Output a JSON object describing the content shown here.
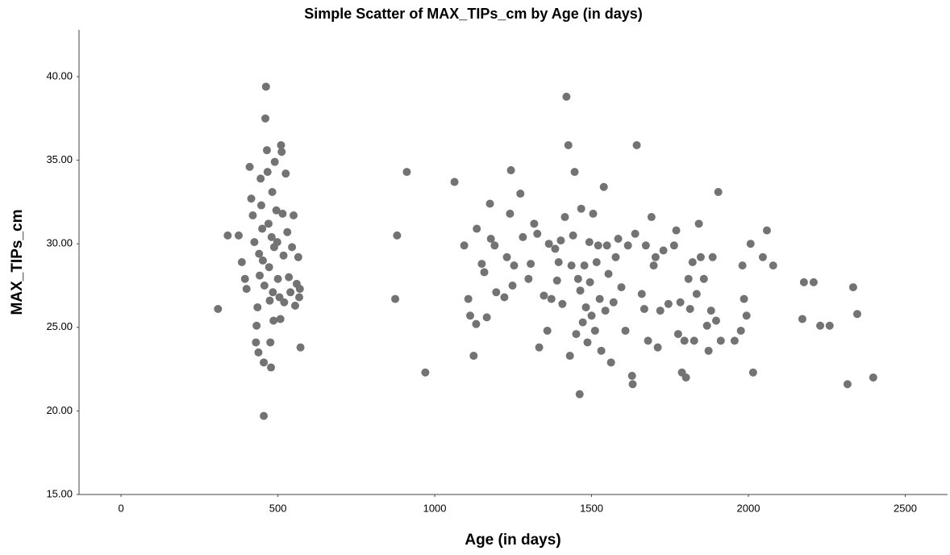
{
  "chart_data": {
    "type": "scatter",
    "title": "Simple Scatter of MAX_TIPs_cm by Age (in days)",
    "x_label": "Age (in days)",
    "y_label": "MAX_TIPs_cm",
    "color": "#737373",
    "grid": false,
    "xlim": [
      -134,
      2635
    ],
    "ylim": [
      15,
      42.8
    ],
    "xticks": [
      0,
      500,
      1000,
      1500,
      2000,
      2500
    ],
    "yticks": [
      {
        "value": 15,
        "label": "15.00"
      },
      {
        "value": 20,
        "label": "20.00"
      },
      {
        "value": 25,
        "label": "25.00"
      },
      {
        "value": 30,
        "label": "30.00"
      },
      {
        "value": 35,
        "label": "35.00"
      },
      {
        "value": 40,
        "label": "40.00"
      }
    ],
    "x": [
      309,
      340,
      375,
      385,
      395,
      400,
      410,
      415,
      420,
      425,
      430,
      432,
      435,
      438,
      440,
      442,
      445,
      447,
      450,
      452,
      455,
      455,
      457,
      460,
      462,
      465,
      467,
      470,
      472,
      474,
      476,
      478,
      480,
      482,
      484,
      486,
      488,
      490,
      495,
      498,
      500,
      505,
      508,
      510,
      512,
      515,
      518,
      520,
      525,
      530,
      535,
      540,
      545,
      550,
      555,
      560,
      565,
      568,
      570,
      572,
      880,
      874,
      911,
      970,
      1063,
      1094,
      1107,
      1113,
      1124,
      1132,
      1134,
      1150,
      1158,
      1166,
      1176,
      1179,
      1191,
      1196,
      1222,
      1230,
      1243,
      1240,
      1253,
      1248,
      1273,
      1281,
      1299,
      1306,
      1317,
      1327,
      1333,
      1348,
      1359,
      1364,
      1372,
      1384,
      1390,
      1395,
      1402,
      1407,
      1415,
      1420,
      1426,
      1431,
      1436,
      1441,
      1446,
      1451,
      1457,
      1462,
      1464,
      1467,
      1472,
      1477,
      1482,
      1487,
      1493,
      1495,
      1500,
      1505,
      1511,
      1516,
      1521,
      1526,
      1531,
      1539,
      1544,
      1549,
      1554,
      1562,
      1570,
      1577,
      1585,
      1595,
      1608,
      1616,
      1629,
      1631,
      1639,
      1644,
      1660,
      1668,
      1673,
      1680,
      1691,
      1698,
      1704,
      1711,
      1719,
      1729,
      1745,
      1763,
      1770,
      1776,
      1783,
      1788,
      1796,
      1801,
      1809,
      1814,
      1822,
      1827,
      1835,
      1842,
      1848,
      1858,
      1868,
      1873,
      1881,
      1886,
      1897,
      1904,
      1912,
      1956,
      1976,
      1981,
      1986,
      1994,
      2007,
      2015,
      2046,
      2059,
      2079,
      2172,
      2177,
      2208,
      2229,
      2259,
      2316,
      2334,
      2347,
      2398
    ],
    "values": [
      26.1,
      30.5,
      30.5,
      28.9,
      27.9,
      27.3,
      34.6,
      32.7,
      31.7,
      30.1,
      24.1,
      25.1,
      26.2,
      23.5,
      29.4,
      28.1,
      33.9,
      32.3,
      30.9,
      29.0,
      22.9,
      19.7,
      27.5,
      37.5,
      39.4,
      35.6,
      34.3,
      31.2,
      28.6,
      26.6,
      24.1,
      22.6,
      30.4,
      33.1,
      27.1,
      25.4,
      29.8,
      34.9,
      32.0,
      30.1,
      27.9,
      26.8,
      25.5,
      35.9,
      35.5,
      31.8,
      29.3,
      26.5,
      34.2,
      30.7,
      28.0,
      27.1,
      29.8,
      31.7,
      26.3,
      27.6,
      29.2,
      26.8,
      27.3,
      23.8,
      30.5,
      26.7,
      34.3,
      22.3,
      33.7,
      29.9,
      26.7,
      25.7,
      23.3,
      25.2,
      30.9,
      28.8,
      28.3,
      25.6,
      32.4,
      30.3,
      29.9,
      27.1,
      26.8,
      29.2,
      34.4,
      31.8,
      28.7,
      27.5,
      33.0,
      30.4,
      27.9,
      28.8,
      31.2,
      30.6,
      23.8,
      26.9,
      24.8,
      30.0,
      26.7,
      29.7,
      27.8,
      28.9,
      30.2,
      26.4,
      31.6,
      38.8,
      35.9,
      23.3,
      28.7,
      30.5,
      34.3,
      24.6,
      27.9,
      21.0,
      27.2,
      32.1,
      25.3,
      28.7,
      26.2,
      24.1,
      30.1,
      27.7,
      25.7,
      31.8,
      24.8,
      28.9,
      29.9,
      26.7,
      23.6,
      33.4,
      26.0,
      29.9,
      28.2,
      22.9,
      26.5,
      29.2,
      30.3,
      27.4,
      24.8,
      29.9,
      22.1,
      21.6,
      30.6,
      35.9,
      27.0,
      26.1,
      29.9,
      24.2,
      31.6,
      28.7,
      29.2,
      23.8,
      26.0,
      29.6,
      26.4,
      29.9,
      30.8,
      24.6,
      26.5,
      22.3,
      24.2,
      22.0,
      27.9,
      26.1,
      28.9,
      24.2,
      27.0,
      31.2,
      29.2,
      27.9,
      25.1,
      23.6,
      26.0,
      29.2,
      25.4,
      33.1,
      24.2,
      24.2,
      24.8,
      28.7,
      26.7,
      25.7,
      30.0,
      22.3,
      29.2,
      30.8,
      28.7,
      25.5,
      27.7,
      27.7,
      25.1,
      25.1,
      21.6,
      27.4,
      25.8,
      22.0
    ]
  }
}
